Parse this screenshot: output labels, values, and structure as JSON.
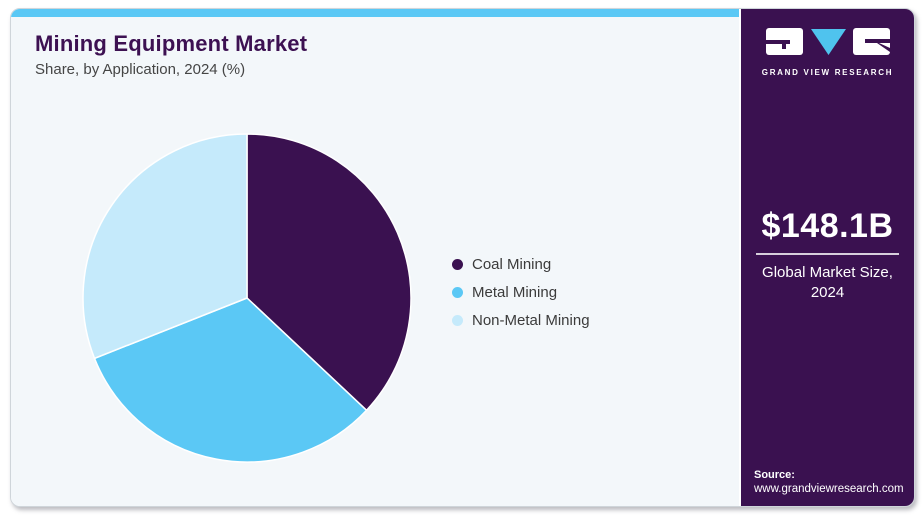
{
  "header": {
    "title": "Mining Equipment Market",
    "subtitle": "Share, by Application, 2024 (%)"
  },
  "chart_data": {
    "type": "pie",
    "labels": [
      "Coal Mining",
      "Metal Mining",
      "Non-Metal Mining"
    ],
    "values": [
      37,
      32,
      31
    ],
    "unit": "%",
    "colors": [
      "#3a1150",
      "#5bc8f5",
      "#c5eafb"
    ],
    "start_angle_deg": 0,
    "direction": "clockwise",
    "legend_position": "right",
    "slice_separator_color": "#ffffff"
  },
  "sidebar": {
    "brand": {
      "name": "GRAND VIEW RESEARCH",
      "logo_icon": "gvr-logo",
      "logo_triangle_color": "#4fc3ee"
    },
    "stat": {
      "value": "$148.1B",
      "caption_line1": "Global Market Size,",
      "caption_line2": "2024"
    },
    "source": {
      "label": "Source:",
      "url": "www.grandviewresearch.com"
    }
  },
  "theme": {
    "brand_purple": "#3a1150",
    "accent_blue": "#5ac8f5",
    "content_bg": "#f3f7fa",
    "title_color": "#3d1152",
    "text_color": "#3b3b3b"
  }
}
